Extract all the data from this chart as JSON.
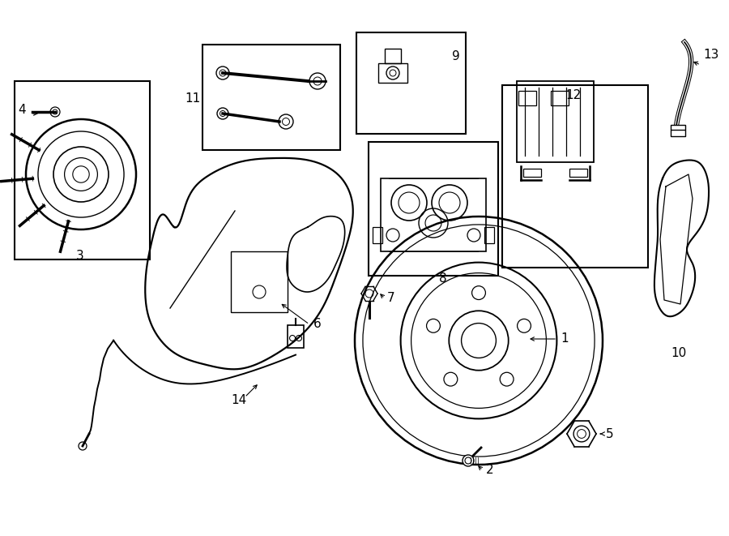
{
  "bg_color": "#ffffff",
  "fig_width": 9.0,
  "fig_height": 6.61,
  "dpi": 100,
  "xlim": [
    0,
    900
  ],
  "ylim": [
    0,
    661
  ]
}
